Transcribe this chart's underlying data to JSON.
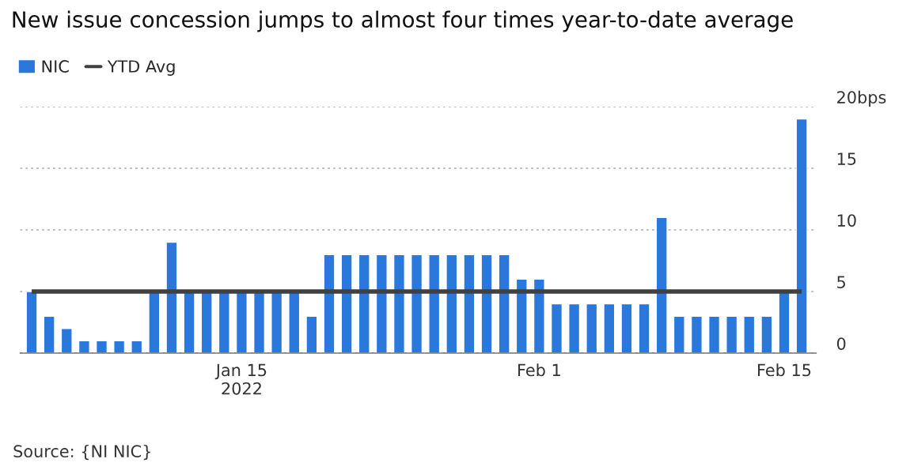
{
  "chart_data": {
    "type": "bar",
    "title": "New issue concession jumps to almost four times year-to-date average",
    "x": [
      "2022-01-03",
      "2022-01-04",
      "2022-01-05",
      "2022-01-06",
      "2022-01-07",
      "2022-01-08",
      "2022-01-09",
      "2022-01-10",
      "2022-01-11",
      "2022-01-12",
      "2022-01-13",
      "2022-01-14",
      "2022-01-15",
      "2022-01-16",
      "2022-01-17",
      "2022-01-18",
      "2022-01-19",
      "2022-01-20",
      "2022-01-21",
      "2022-01-22",
      "2022-01-23",
      "2022-01-24",
      "2022-01-25",
      "2022-01-26",
      "2022-01-27",
      "2022-01-28",
      "2022-01-29",
      "2022-01-30",
      "2022-01-31",
      "2022-02-01",
      "2022-02-02",
      "2022-02-03",
      "2022-02-04",
      "2022-02-05",
      "2022-02-06",
      "2022-02-07",
      "2022-02-08",
      "2022-02-09",
      "2022-02-10",
      "2022-02-11",
      "2022-02-12",
      "2022-02-13",
      "2022-02-14",
      "2022-02-15",
      "2022-02-16"
    ],
    "series": [
      {
        "name": "NIC",
        "color": "#2a78dc",
        "values": [
          5,
          3,
          2,
          1,
          1,
          1,
          1,
          5,
          9,
          5,
          5,
          5,
          5,
          5,
          5,
          5,
          3,
          8,
          8,
          8,
          8,
          8,
          8,
          8,
          8,
          8,
          8,
          8,
          6,
          6,
          4,
          4,
          4,
          4,
          4,
          4,
          11,
          3,
          3,
          3,
          3,
          3,
          3,
          5,
          19
        ]
      },
      {
        "name": "YTD Avg",
        "type": "line",
        "color": "#404040",
        "x": [
          "2022-01-03",
          "2022-02-16"
        ],
        "values": [
          5,
          5
        ]
      }
    ],
    "xlim": [
      "2022-01-02T08:00",
      "2022-02-16T20:00"
    ],
    "xticks": [
      {
        "value": "2022-01-15",
        "label": "Jan 15\n2022"
      },
      {
        "value": "2022-02-01",
        "label": "Feb 1"
      },
      {
        "value": "2022-02-15",
        "label": "Feb 15"
      }
    ],
    "ylim": [
      0,
      20
    ],
    "yticks": [
      0,
      5,
      10,
      15,
      {
        "value": 20,
        "label": "20bps"
      }
    ],
    "grid": "y",
    "legend": "top left",
    "annotations": [
      "Source: {NI NIC}"
    ]
  }
}
